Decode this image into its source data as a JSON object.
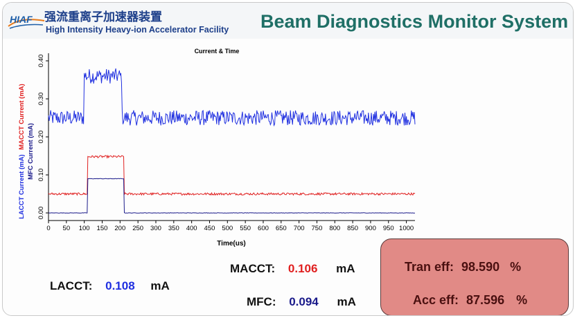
{
  "header": {
    "logo_text": "HIAF",
    "title_cn": "强流重离子加速器装置",
    "title_en": "High Intensity Heavy-ion Accelerator Facility",
    "system_title": "Beam Diagnostics Monitor System"
  },
  "chart_data": {
    "type": "line",
    "title": "Current & Time",
    "xlabel": "Time(us)",
    "ylabel_parts": [
      "LACCT Current (mA)",
      "MACCT Current (mA)",
      "MFC Current (mA)"
    ],
    "xlim": [
      0,
      1024
    ],
    "ylim": [
      -0.02,
      0.42
    ],
    "x_ticks": [
      0,
      50,
      100,
      150,
      200,
      250,
      300,
      350,
      400,
      450,
      500,
      550,
      600,
      650,
      700,
      750,
      800,
      850,
      900,
      950,
      1000
    ],
    "y_ticks": [
      0.0,
      0.1,
      0.2,
      0.3,
      0.4
    ],
    "y_tick_labels": [
      "0.00",
      "0.10",
      "0.20",
      "0.30",
      "0.40"
    ],
    "series": [
      {
        "name": "LACCT",
        "color": "#1f2fe0",
        "baseline": 0.25,
        "pulse_value": 0.36,
        "pulse_start": 100,
        "pulse_end": 205,
        "noise": 0.02
      },
      {
        "name": "MACCT",
        "color": "#e02020",
        "baseline": 0.05,
        "pulse_value": 0.148,
        "pulse_start": 110,
        "pulse_end": 210,
        "noise": 0.003
      },
      {
        "name": "MFC",
        "color": "#1a1a8a",
        "baseline": 0.0,
        "pulse_value": 0.09,
        "pulse_start": 110,
        "pulse_end": 210,
        "noise": 0.0005
      }
    ]
  },
  "readouts": {
    "lacct_label": "LACCT:",
    "lacct_value": "0.108",
    "lacct_unit": "mA",
    "macct_label": "MACCT:",
    "macct_value": "0.106",
    "macct_unit": "mA",
    "mfc_label": "MFC:",
    "mfc_value": "0.094",
    "mfc_unit": "mA"
  },
  "efficiency": {
    "tran_label": "Tran eff:",
    "tran_value": "98.590",
    "tran_unit": "%",
    "acc_label": "Acc eff:",
    "acc_value": "87.596",
    "acc_unit": "%"
  }
}
